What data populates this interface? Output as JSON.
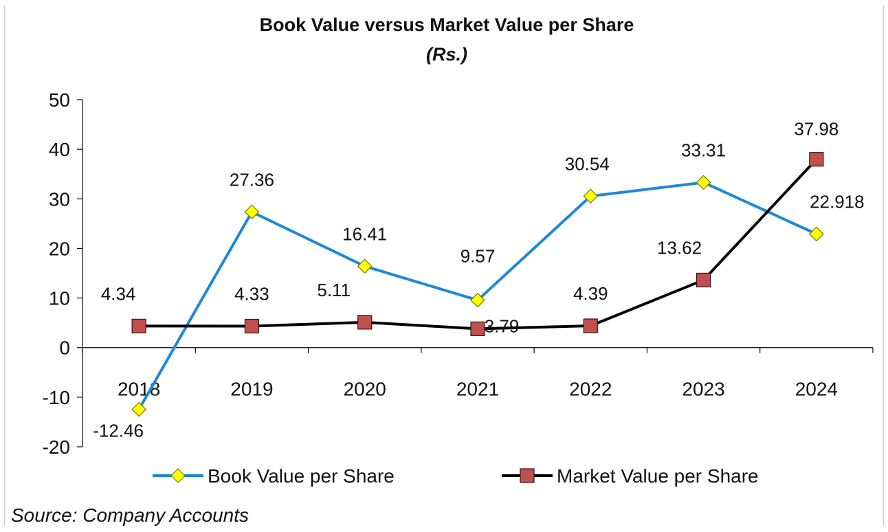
{
  "chart_data": {
    "type": "line",
    "title": "Book Value versus Market Value per Share",
    "subtitle": "(Rs.)",
    "xlabel": "",
    "ylabel": "",
    "categories": [
      "2018",
      "2019",
      "2020",
      "2021",
      "2022",
      "2023",
      "2024"
    ],
    "ylim": [
      -20,
      50
    ],
    "yticks": [
      "50",
      "40",
      "30",
      "20",
      "10",
      "0",
      "-10",
      "-20"
    ],
    "ytick_values": [
      50,
      40,
      30,
      20,
      10,
      0,
      -10,
      -20
    ],
    "grid": false,
    "legend_position": "bottom",
    "series": [
      {
        "name": "Book Value per Share",
        "values": [
          -12.46,
          27.36,
          16.41,
          9.57,
          30.54,
          33.31,
          22.918
        ],
        "labels": [
          "-12.46",
          "27.36",
          "16.41",
          "9.57",
          "30.54",
          "33.31",
          "22.918"
        ],
        "color": "#1e88d8",
        "marker": "diamond",
        "marker_fill": "#ffff00"
      },
      {
        "name": "Market Value per Share",
        "values": [
          4.34,
          4.33,
          5.11,
          3.79,
          4.39,
          13.62,
          37.98
        ],
        "labels": [
          "4.34",
          "4.33",
          "5.11",
          "3.79",
          "4.39",
          "13.62",
          "37.98"
        ],
        "color": "#000000",
        "marker": "square",
        "marker_fill": "#c0504d"
      }
    ]
  },
  "source_note": "Source: Company Accounts"
}
